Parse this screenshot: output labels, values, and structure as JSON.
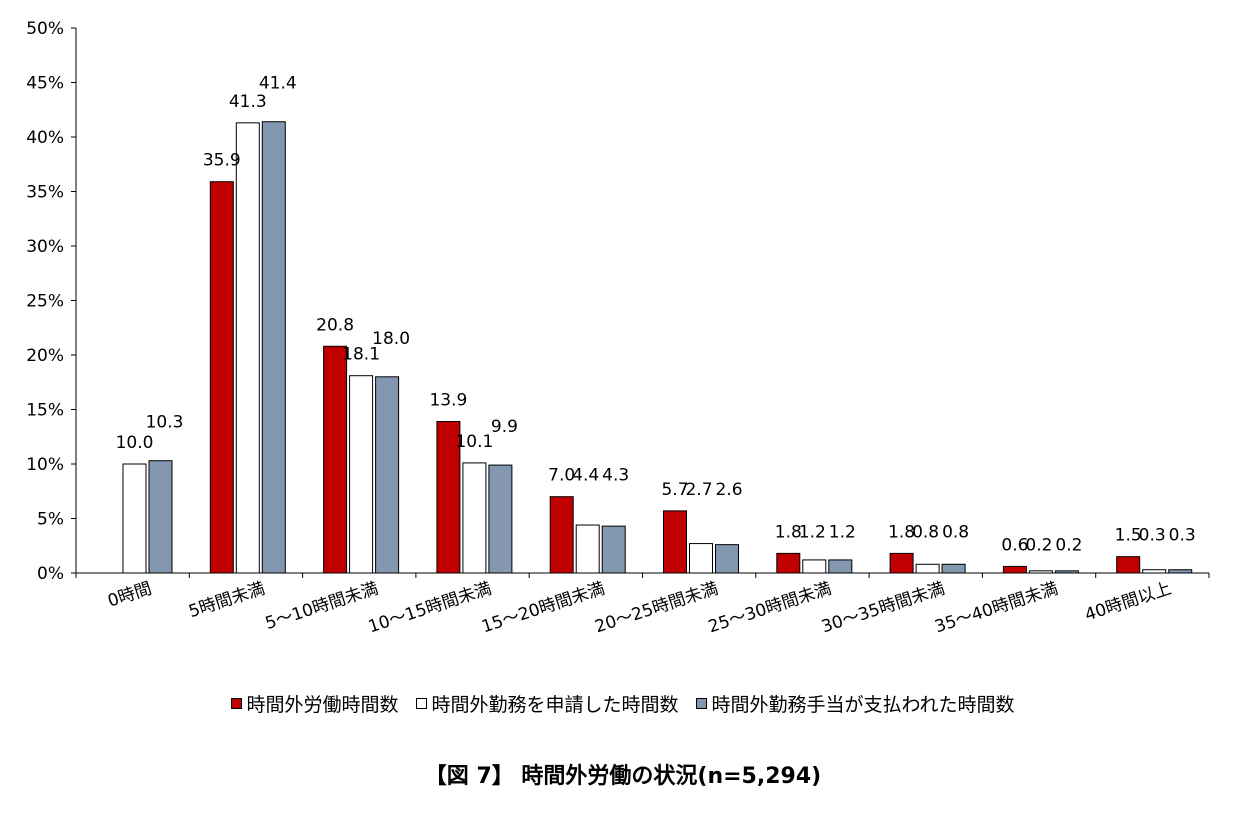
{
  "chart_data": {
    "type": "bar",
    "categories": [
      "0時間",
      "5時間未満",
      "5〜10時間未満",
      "10〜15時間未満",
      "15〜20時間未満",
      "20〜25時間未満",
      "25〜30時間未満",
      "30〜35時間未満",
      "35〜40時間未満",
      "40時間以上"
    ],
    "series": [
      {
        "name": "時間外労働時間数",
        "color": "#c00000",
        "values": [
          null,
          35.9,
          20.8,
          13.9,
          7.0,
          5.7,
          1.8,
          1.8,
          0.6,
          1.5
        ],
        "labels": [
          "",
          "35.9",
          "20.8",
          "13.9",
          "7.0",
          "5.7",
          "1.8",
          "1.8",
          "0.6",
          "1.5"
        ]
      },
      {
        "name": "時間外勤務を申請した時間数",
        "color": "#ffffff",
        "values": [
          10.0,
          41.3,
          18.1,
          10.1,
          4.4,
          2.7,
          1.2,
          0.8,
          0.2,
          0.3
        ],
        "labels": [
          "10.0",
          "41.3",
          "18.1",
          "10.1",
          "4.4",
          "2.7",
          "1.2",
          "0.8",
          "0.2",
          "0.3"
        ]
      },
      {
        "name": "時間外勤務手当が支払われた時間数",
        "color": "#8497b0",
        "values": [
          10.3,
          41.4,
          18.0,
          9.9,
          4.3,
          2.6,
          1.2,
          0.8,
          0.2,
          0.3
        ],
        "labels": [
          "10.3",
          "41.4",
          "18.0",
          "9.9",
          "4.3",
          "2.6",
          "1.2",
          "0.8",
          "0.2",
          "0.3"
        ]
      }
    ],
    "y_ticks": [
      "0%",
      "5%",
      "10%",
      "15%",
      "20%",
      "25%",
      "30%",
      "35%",
      "40%",
      "45%",
      "50%"
    ],
    "ylim": [
      0,
      50
    ],
    "grid": false,
    "legend_position": "bottom",
    "title": "【図 7】 時間外労働の状況(n=5,294)"
  }
}
